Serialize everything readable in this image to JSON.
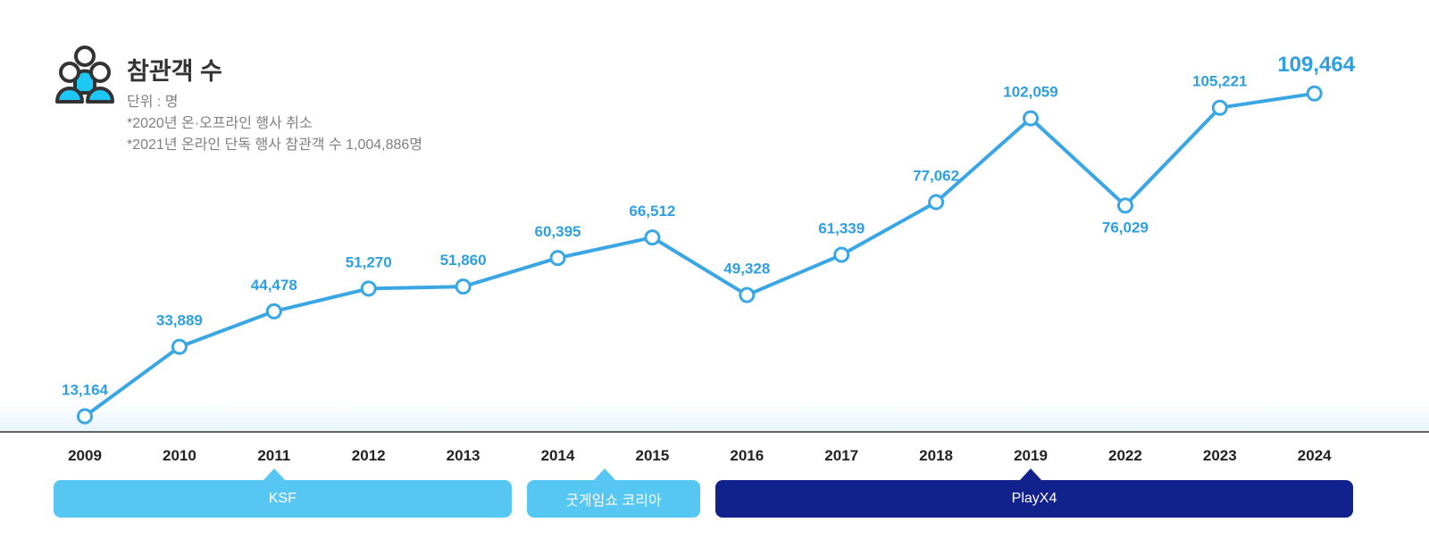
{
  "header": {
    "title": "참관객 수",
    "unit": "단위 : 명",
    "note_1": "*2020년 온·오프라인 행사 취소",
    "note_2": "*2021년 온라인 단독 행사 참관객 수 1,004,886명",
    "icon": "people-group-icon"
  },
  "chart_data": {
    "type": "line",
    "title": "참관객 수",
    "unit": "단위 : 명",
    "categories": [
      "2009",
      "2010",
      "2011",
      "2012",
      "2013",
      "2014",
      "2015",
      "2016",
      "2017",
      "2018",
      "2019",
      "2022",
      "2023",
      "2024"
    ],
    "values": [
      13164,
      33889,
      44478,
      51270,
      51860,
      60395,
      66512,
      49328,
      61339,
      77062,
      102059,
      76029,
      105221,
      109464
    ],
    "value_labels": [
      "13,164",
      "33,889",
      "44,478",
      "51,270",
      "51,860",
      "60,395",
      "66,512",
      "49,328",
      "61,339",
      "77,062",
      "102,059",
      "76,029",
      "105,221",
      "109,464"
    ],
    "label_below": [
      false,
      false,
      false,
      false,
      false,
      false,
      false,
      false,
      false,
      false,
      false,
      true,
      false,
      false
    ],
    "highlight_last": true,
    "grid": false,
    "legend": "none"
  },
  "eras": [
    {
      "name": "KSF",
      "color": "#56c6f3",
      "from": "2009",
      "to": "2013",
      "pointer": "2011"
    },
    {
      "name": "굿게임쇼 코리아",
      "color": "#56c6f3",
      "from": "2014",
      "to": "2015",
      "pointer": "2014.5"
    },
    {
      "name": "PlayX4",
      "color": "#12228c",
      "from": "2016",
      "to": "2024",
      "pointer": "2019"
    }
  ],
  "colors": {
    "line": "#3aa7e4",
    "marker_fill": "#ffffff",
    "value_label": "#2e9fdf",
    "axis": "#333333",
    "tick_label": "#222222",
    "icon_fill": "#1ec8f5",
    "icon_stroke": "#333333"
  }
}
